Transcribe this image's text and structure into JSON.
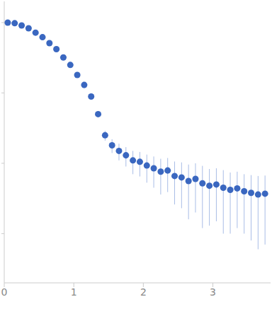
{
  "chart_data": {
    "type": "scatter",
    "log": "y",
    "tick_labels": "x",
    "grid": false,
    "color": "#3a67c0",
    "marker": "circle",
    "xlim": [
      0,
      3.83
    ],
    "xticks": [
      0,
      1,
      2,
      3
    ],
    "ylim": [
      0.0002,
      2
    ],
    "yticks": [
      0.001,
      0.01,
      0.1,
      1
    ],
    "x": [
      0.05,
      0.15,
      0.25,
      0.35,
      0.45,
      0.55,
      0.65,
      0.75,
      0.85,
      0.95,
      1.05,
      1.15,
      1.25,
      1.35,
      1.45,
      1.55,
      1.65,
      1.75,
      1.85,
      1.95,
      2.05,
      2.15,
      2.25,
      2.35,
      2.45,
      2.55,
      2.65,
      2.75,
      2.85,
      2.95,
      3.05,
      3.15,
      3.25,
      3.35,
      3.45,
      3.55,
      3.65,
      3.75
    ],
    "values": [
      1.0,
      0.98,
      0.91,
      0.83,
      0.72,
      0.62,
      0.51,
      0.42,
      0.32,
      0.25,
      0.18,
      0.13,
      0.089,
      0.05,
      0.025,
      0.018,
      0.015,
      0.013,
      0.011,
      0.0105,
      0.0093,
      0.0085,
      0.0076,
      0.0079,
      0.0066,
      0.0063,
      0.0056,
      0.006,
      0.0052,
      0.0048,
      0.005,
      0.0045,
      0.0042,
      0.0044,
      0.004,
      0.0038,
      0.0036,
      0.0037
    ],
    "errors": [
      0.01,
      0.008,
      0.007,
      0.006,
      0.005,
      0.004,
      0.004,
      0.003,
      0.003,
      0.003,
      0.003,
      0.003,
      0.003,
      0.004,
      0.004,
      0.004,
      0.004,
      0.004,
      0.004,
      0.004,
      0.004,
      0.004,
      0.004,
      0.004,
      0.004,
      0.004,
      0.004,
      0.004,
      0.004,
      0.0035,
      0.0035,
      0.0035,
      0.0032,
      0.0032,
      0.003,
      0.003,
      0.003,
      0.003
    ]
  }
}
